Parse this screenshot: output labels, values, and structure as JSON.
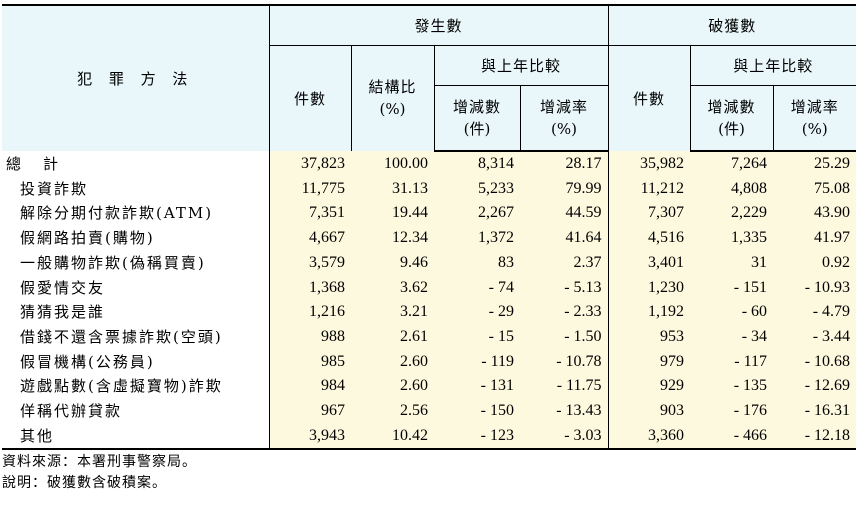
{
  "table": {
    "header": {
      "method": "犯 罪 方 法",
      "occurred": "發生數",
      "solved": "破獲數",
      "compare": "與上年比較",
      "count": "件數",
      "structure_ratio": "結構比",
      "pct_unit": "(%)",
      "change_count": "增減數",
      "case_unit": "(件)",
      "change_rate": "增減率"
    },
    "rows": [
      {
        "label": "總計",
        "occ_count": "37,823",
        "occ_ratio": "100.00",
        "occ_change": "8,314",
        "occ_rate": "28.17",
        "sol_count": "35,982",
        "sol_change": "7,264",
        "sol_rate": "25.29"
      },
      {
        "label": "投資詐欺",
        "occ_count": "11,775",
        "occ_ratio": "31.13",
        "occ_change": "5,233",
        "occ_rate": "79.99",
        "sol_count": "11,212",
        "sol_change": "4,808",
        "sol_rate": "75.08"
      },
      {
        "label": "解除分期付款詐欺(ATM)",
        "occ_count": "7,351",
        "occ_ratio": "19.44",
        "occ_change": "2,267",
        "occ_rate": "44.59",
        "sol_count": "7,307",
        "sol_change": "2,229",
        "sol_rate": "43.90"
      },
      {
        "label": "假網路拍賣(購物)",
        "occ_count": "4,667",
        "occ_ratio": "12.34",
        "occ_change": "1,372",
        "occ_rate": "41.64",
        "sol_count": "4,516",
        "sol_change": "1,335",
        "sol_rate": "41.97"
      },
      {
        "label": "一般購物詐欺(偽稱買賣)",
        "occ_count": "3,579",
        "occ_ratio": "9.46",
        "occ_change": "83",
        "occ_rate": "2.37",
        "sol_count": "3,401",
        "sol_change": "31",
        "sol_rate": "0.92"
      },
      {
        "label": "假愛情交友",
        "occ_count": "1,368",
        "occ_ratio": "3.62",
        "occ_change": "- 74",
        "occ_rate": "- 5.13",
        "sol_count": "1,230",
        "sol_change": "- 151",
        "sol_rate": "- 10.93"
      },
      {
        "label": "猜猜我是誰",
        "occ_count": "1,216",
        "occ_ratio": "3.21",
        "occ_change": "- 29",
        "occ_rate": "- 2.33",
        "sol_count": "1,192",
        "sol_change": "- 60",
        "sol_rate": "- 4.79"
      },
      {
        "label": "借錢不還含票據詐欺(空頭)",
        "occ_count": "988",
        "occ_ratio": "2.61",
        "occ_change": "- 15",
        "occ_rate": "- 1.50",
        "sol_count": "953",
        "sol_change": "- 34",
        "sol_rate": "- 3.44"
      },
      {
        "label": "假冒機構(公務員)",
        "occ_count": "985",
        "occ_ratio": "2.60",
        "occ_change": "- 119",
        "occ_rate": "- 10.78",
        "sol_count": "979",
        "sol_change": "- 117",
        "sol_rate": "- 10.68"
      },
      {
        "label": "遊戲點數(含虛擬寶物)詐欺",
        "occ_count": "984",
        "occ_ratio": "2.60",
        "occ_change": "- 131",
        "occ_rate": "- 11.75",
        "sol_count": "929",
        "sol_change": "- 135",
        "sol_rate": "- 12.69"
      },
      {
        "label": "佯稱代辦貸款",
        "occ_count": "967",
        "occ_ratio": "2.56",
        "occ_change": "- 150",
        "occ_rate": "- 13.43",
        "sol_count": "903",
        "sol_change": "- 176",
        "sol_rate": "- 16.31"
      },
      {
        "label": "其他",
        "occ_count": "3,943",
        "occ_ratio": "10.42",
        "occ_change": "- 123",
        "occ_rate": "- 3.03",
        "sol_count": "3,360",
        "sol_change": "- 466",
        "sol_rate": "- 12.18"
      }
    ]
  },
  "notes": {
    "source": "資料來源：本署刑事警察局。",
    "explanation": "說明：破獲數含破積案。"
  },
  "colors": {
    "header_bg": "#e9f7fb",
    "data_bg": "#fdf9df"
  }
}
